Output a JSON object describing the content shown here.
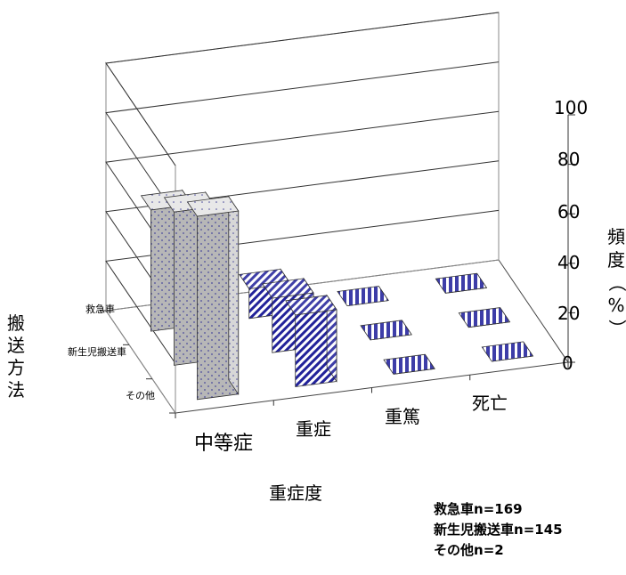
{
  "chart_data": {
    "type": "bar",
    "subtype": "3d-bar",
    "title": "",
    "xlabel": "重症度",
    "ylabel": "搬送方法",
    "zlabel": "頻度（%）",
    "categories": [
      "中等症",
      "重症",
      "重篤",
      "死亡"
    ],
    "series": [
      {
        "name": "救急車",
        "values": [
          74,
          29,
          0,
          0
        ]
      },
      {
        "name": "新生児搬送車",
        "values": [
          62,
          22,
          0,
          0
        ]
      },
      {
        "name": "その他",
        "values": [
          49,
          12,
          0,
          0
        ]
      }
    ],
    "z_ticks": [
      "0",
      "20",
      "40",
      "60",
      "80",
      "100"
    ],
    "zlim": [
      0,
      100
    ],
    "grid": true,
    "legend_position": "bottom-right"
  },
  "labels": {
    "x_axis_title": "重症度",
    "y_axis_title_chars": [
      "搬",
      "送",
      "方",
      "法"
    ],
    "z_axis_title_chars": [
      "頻",
      "度",
      "（",
      "%",
      "）"
    ]
  },
  "notes": [
    {
      "name": "救急車",
      "count": "n=169"
    },
    {
      "name": "新生児搬送車",
      "count": "n=145"
    },
    {
      "name": "その他",
      "count": "n=2"
    }
  ],
  "colors": {
    "ambulance": "#b8b8b8",
    "neonatal": "#b8b8b8",
    "other": "#a9a9a9",
    "severe_stripe": "#1a1a9c",
    "critical_stripe": "#1a1a9c",
    "death_stripe": "#1a1a9c",
    "grid": "#333333"
  }
}
